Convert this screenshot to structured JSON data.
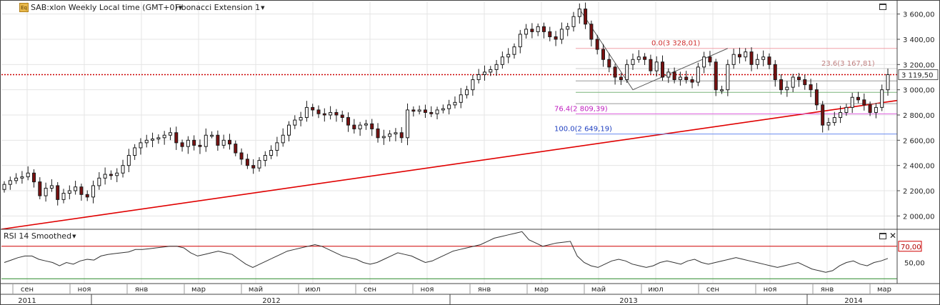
{
  "header": {
    "symbol_label": "SAB:xlon Weekly Local time (GMT+0)",
    "study_label": "Fibonacci Extension 1",
    "icon": "equity-icon",
    "icon_text": "Eq"
  },
  "rsi_panel": {
    "label": "RSI 14 Smoothed"
  },
  "colors": {
    "candle_up": "#ffffff",
    "candle_down": "#7a1010",
    "trend_line": "#e00000",
    "price_line": "#cc0000",
    "rsi_line": "#333333",
    "fib_0": "#f0a0a8",
    "fib_23": "#cccccc",
    "fib_76": "#e060e0",
    "fib_100": "#6a8cf0",
    "level_70": "#d00000",
    "level_30": "#2a8a2a"
  },
  "chart_data": [
    {
      "type": "candlestick",
      "title": "SAB:xlon Weekly",
      "ylim": [
        1900,
        3700
      ],
      "y_ticks": [
        "2 000,00",
        "2 200,00",
        "2 400,00",
        "2 600,00",
        "2 800,00",
        "3 000,00",
        "3 200,00",
        "3 400,00",
        "3 600,00"
      ],
      "y_tick_values": [
        2000,
        2200,
        2400,
        2600,
        2800,
        3000,
        3200,
        3400,
        3600
      ],
      "grid": true,
      "last_price": {
        "value": 3119.5,
        "label": "3 119,50"
      },
      "fib_extension": [
        {
          "label": "0.0(3 328,01)",
          "value": 3328.01
        },
        {
          "label": "23.6(3 167,81)",
          "value": 3167.81
        },
        {
          "label": "76.4(2 809,39)",
          "value": 2809.39
        },
        {
          "label": "100.0(2 649,19)",
          "value": 2649.19
        }
      ],
      "trend_line": {
        "start": [
          "2011-09-05",
          1890
        ],
        "end": [
          "2014-04-07",
          2915
        ]
      },
      "series": [
        {
          "close": [
            2250,
            2280,
            2300,
            2310,
            2340,
            2270,
            2160,
            2220,
            2240,
            2130,
            2180,
            2200,
            2230,
            2170,
            2150,
            2240,
            2300,
            2330,
            2320,
            2340,
            2400,
            2480,
            2540,
            2580,
            2600,
            2610,
            2620,
            2640,
            2660,
            2580,
            2550,
            2600,
            2560,
            2550,
            2640,
            2640,
            2560,
            2600,
            2570,
            2500,
            2450,
            2400,
            2380,
            2440,
            2480,
            2520,
            2580,
            2640,
            2720,
            2760,
            2780,
            2860,
            2840,
            2810,
            2800,
            2820,
            2800,
            2780,
            2720,
            2690,
            2720,
            2730,
            2690,
            2620,
            2630,
            2650,
            2660,
            2620,
            2840,
            2830,
            2840,
            2820,
            2810,
            2840,
            2850,
            2880,
            2900,
            2960,
            3000,
            3080,
            3120,
            3140,
            3160,
            3200,
            3260,
            3280,
            3340,
            3440,
            3480,
            3460,
            3500,
            3460,
            3420,
            3400,
            3480,
            3500,
            3580,
            3640,
            3520,
            3400,
            3320,
            3240,
            3180,
            3100,
            3080,
            3200,
            3240,
            3260,
            3240,
            3150,
            3220,
            3100,
            3140,
            3080,
            3100,
            3080,
            3060,
            3180,
            3260,
            3220,
            3000,
            3000,
            3200,
            3280,
            3260,
            3300,
            3200,
            3240,
            3260,
            3200,
            3080,
            3000,
            3020,
            3100,
            3080,
            3040,
            3000,
            2880,
            2720,
            2740,
            2780,
            2820,
            2860,
            2940,
            2920,
            2880,
            2820,
            2860,
            3000,
            3120
          ]
        }
      ]
    },
    {
      "type": "line",
      "title": "RSI 14 Smoothed",
      "ylim": [
        25,
        90
      ],
      "y_ticks": [
        "50,00"
      ],
      "y_tick_values": [
        50
      ],
      "levels": [
        {
          "value": 70,
          "label": "70,00"
        },
        {
          "value": 30,
          "label": ""
        }
      ],
      "series": [
        {
          "name": "RSI 14 Smoothed",
          "values": [
            50,
            53,
            56,
            58,
            58,
            54,
            52,
            50,
            46,
            50,
            48,
            52,
            54,
            53,
            58,
            60,
            61,
            62,
            63,
            66,
            66,
            67,
            68,
            69,
            70,
            70,
            68,
            62,
            58,
            60,
            62,
            64,
            62,
            60,
            54,
            48,
            44,
            48,
            52,
            56,
            60,
            64,
            66,
            68,
            70,
            72,
            70,
            66,
            62,
            58,
            56,
            54,
            50,
            48,
            50,
            54,
            58,
            62,
            60,
            58,
            54,
            50,
            52,
            56,
            60,
            64,
            66,
            68,
            70,
            72,
            76,
            80,
            82,
            84,
            86,
            88,
            78,
            74,
            70,
            72,
            74,
            75,
            76,
            58,
            50,
            46,
            44,
            48,
            52,
            54,
            52,
            48,
            46,
            44,
            46,
            50,
            52,
            50,
            48,
            52,
            54,
            50,
            48,
            50,
            52,
            54,
            56,
            54,
            52,
            50,
            48,
            46,
            44,
            46,
            48,
            50,
            46,
            42,
            40,
            38,
            40,
            46,
            50,
            52,
            48,
            46,
            50,
            52,
            55
          ]
        }
      ]
    }
  ],
  "x_axis": {
    "months": [
      "сен",
      "ноя",
      "янв",
      "мар",
      "май",
      "июл",
      "сен",
      "ноя",
      "янв",
      "мар",
      "май",
      "июл",
      "сен",
      "ноя",
      "янв",
      "мар"
    ],
    "years": [
      "2011",
      "2012",
      "2013",
      "2014"
    ]
  }
}
